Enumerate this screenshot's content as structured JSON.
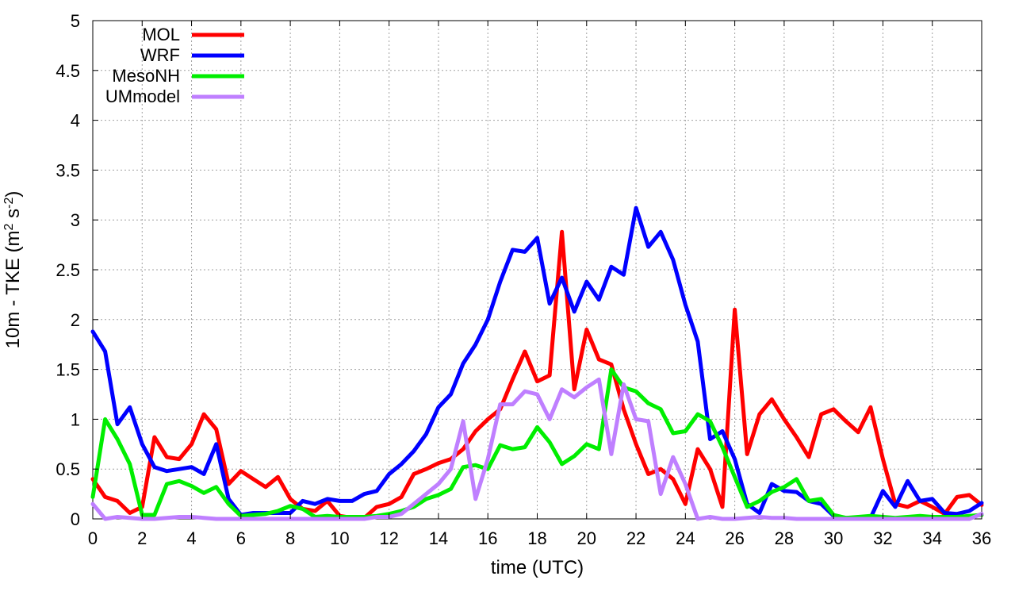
{
  "chart_data": {
    "type": "line",
    "title": "",
    "xlabel": "time (UTC)",
    "ylabel_main": "10m - TKE (m",
    "ylabel_sup1": "2",
    "ylabel_mid": " s",
    "ylabel_sup2": "-2",
    "ylabel_end": ")",
    "xlim": [
      0,
      36
    ],
    "ylim": [
      0,
      5
    ],
    "xticks": [
      "0",
      "2",
      "4",
      "6",
      "8",
      "10",
      "12",
      "14",
      "16",
      "18",
      "20",
      "22",
      "24",
      "26",
      "28",
      "30",
      "32",
      "34",
      "36"
    ],
    "yticks": [
      "0",
      "0.5",
      "1",
      "1.5",
      "2",
      "2.5",
      "3",
      "3.5",
      "4",
      "4.5",
      "5"
    ],
    "grid": true,
    "legend_position": "top-left",
    "series": [
      {
        "name": "MOL",
        "color": "#ff0000",
        "x": [
          0,
          0.5,
          1,
          1.5,
          2,
          2.5,
          3,
          3.5,
          4,
          4.5,
          5,
          5.5,
          6,
          6.5,
          7,
          7.5,
          8,
          8.5,
          9,
          9.5,
          10,
          10.5,
          11,
          11.5,
          12,
          12.5,
          13,
          13.5,
          14,
          14.5,
          15,
          15.5,
          16,
          16.5,
          17,
          17.5,
          18,
          18.5,
          19,
          19.5,
          20,
          20.5,
          21,
          21.5,
          22,
          22.5,
          23,
          23.5,
          24,
          24.5,
          25,
          25.5,
          26,
          26.5,
          27,
          27.5,
          28,
          28.5,
          29,
          29.5,
          30,
          30.5,
          31,
          31.5,
          32,
          32.5,
          33,
          33.5,
          34,
          34.5,
          35,
          35.5,
          36
        ],
        "y": [
          0.4,
          0.22,
          0.18,
          0.06,
          0.12,
          0.82,
          0.62,
          0.6,
          0.75,
          1.05,
          0.9,
          0.35,
          0.48,
          0.4,
          0.32,
          0.42,
          0.2,
          0.1,
          0.08,
          0.18,
          0.03,
          0.01,
          0.01,
          0.12,
          0.15,
          0.22,
          0.45,
          0.5,
          0.56,
          0.6,
          0.7,
          0.88,
          1.0,
          1.1,
          1.4,
          1.68,
          1.38,
          1.44,
          2.88,
          1.3,
          1.9,
          1.6,
          1.55,
          1.1,
          0.75,
          0.45,
          0.5,
          0.4,
          0.15,
          0.7,
          0.5,
          0.12,
          2.1,
          0.65,
          1.05,
          1.2,
          1.0,
          0.82,
          0.62,
          1.05,
          1.1,
          0.98,
          0.87,
          1.12,
          0.6,
          0.15,
          0.12,
          0.18,
          0.12,
          0.05,
          0.22,
          0.24,
          0.14
        ]
      },
      {
        "name": "WRF",
        "color": "#0000ff",
        "x": [
          0,
          0.5,
          1,
          1.5,
          2,
          2.5,
          3,
          3.5,
          4,
          4.5,
          5,
          5.5,
          6,
          6.5,
          7,
          7.5,
          8,
          8.5,
          9,
          9.5,
          10,
          10.5,
          11,
          11.5,
          12,
          12.5,
          13,
          13.5,
          14,
          14.5,
          15,
          15.5,
          16,
          16.5,
          17,
          17.5,
          18,
          18.5,
          19,
          19.5,
          20,
          20.5,
          21,
          21.5,
          22,
          22.5,
          23,
          23.5,
          24,
          24.5,
          25,
          25.5,
          26,
          26.5,
          27,
          27.5,
          28,
          28.5,
          29,
          29.5,
          30,
          30.5,
          31,
          31.5,
          32,
          32.5,
          33,
          33.5,
          34,
          34.5,
          35,
          35.5,
          36
        ],
        "y": [
          1.88,
          1.68,
          0.95,
          1.12,
          0.75,
          0.52,
          0.48,
          0.5,
          0.52,
          0.45,
          0.75,
          0.2,
          0.04,
          0.06,
          0.06,
          0.06,
          0.06,
          0.18,
          0.15,
          0.2,
          0.18,
          0.18,
          0.25,
          0.28,
          0.45,
          0.55,
          0.68,
          0.85,
          1.12,
          1.25,
          1.56,
          1.75,
          2.0,
          2.38,
          2.7,
          2.68,
          2.82,
          2.16,
          2.42,
          2.08,
          2.38,
          2.2,
          2.53,
          2.45,
          3.12,
          2.73,
          2.88,
          2.6,
          2.15,
          1.78,
          0.8,
          0.88,
          0.6,
          0.15,
          0.06,
          0.35,
          0.28,
          0.27,
          0.18,
          0.15,
          0.03,
          0.01,
          0.01,
          0.01,
          0.28,
          0.12,
          0.38,
          0.18,
          0.2,
          0.06,
          0.05,
          0.08,
          0.16
        ]
      },
      {
        "name": "MesoNH",
        "color": "#00ee00",
        "x": [
          0,
          0.5,
          1,
          1.5,
          2,
          2.5,
          3,
          3.5,
          4,
          4.5,
          5,
          5.5,
          6,
          6.5,
          7,
          7.5,
          8,
          8.5,
          9,
          9.5,
          10,
          10.5,
          11,
          11.5,
          12,
          12.5,
          13,
          13.5,
          14,
          14.5,
          15,
          15.5,
          16,
          16.5,
          17,
          17.5,
          18,
          18.5,
          19,
          19.5,
          20,
          20.5,
          21,
          21.5,
          22,
          22.5,
          23,
          23.5,
          24,
          24.5,
          25,
          25.5,
          26,
          26.5,
          27,
          27.5,
          28,
          28.5,
          29,
          29.5,
          30,
          30.5,
          31,
          31.5,
          32,
          32.5,
          33,
          33.5,
          34,
          34.5,
          35,
          35.5,
          36
        ],
        "y": [
          0.22,
          1.0,
          0.8,
          0.55,
          0.04,
          0.04,
          0.35,
          0.38,
          0.33,
          0.26,
          0.32,
          0.15,
          0.03,
          0.04,
          0.05,
          0.08,
          0.13,
          0.1,
          0.02,
          0.03,
          0.02,
          0.02,
          0.02,
          0.03,
          0.05,
          0.08,
          0.12,
          0.2,
          0.24,
          0.3,
          0.52,
          0.54,
          0.5,
          0.74,
          0.7,
          0.72,
          0.92,
          0.77,
          0.55,
          0.63,
          0.75,
          0.7,
          1.5,
          1.32,
          1.28,
          1.16,
          1.1,
          0.86,
          0.88,
          1.05,
          0.98,
          0.72,
          0.42,
          0.12,
          0.18,
          0.27,
          0.32,
          0.4,
          0.18,
          0.2,
          0.04,
          0.01,
          0.02,
          0.03,
          0.02,
          0.01,
          0.02,
          0.03,
          0.02,
          0.02,
          0.02,
          0.03,
          0.04
        ]
      },
      {
        "name": "UMmodel",
        "color": "#bf7fff",
        "x": [
          0,
          0.5,
          1,
          1.5,
          2,
          2.5,
          3,
          3.5,
          4,
          4.5,
          5,
          5.5,
          6,
          6.5,
          7,
          7.5,
          8,
          8.5,
          9,
          9.5,
          10,
          10.5,
          11,
          11.5,
          12,
          12.5,
          13,
          13.5,
          14,
          14.5,
          15,
          15.5,
          16,
          16.5,
          17,
          17.5,
          18,
          18.5,
          19,
          19.5,
          20,
          20.5,
          21,
          21.5,
          22,
          22.5,
          23,
          23.5,
          24,
          24.5,
          25,
          25.5,
          26,
          26.5,
          27,
          27.5,
          28,
          28.5,
          29,
          29.5,
          30,
          30.5,
          31,
          31.5,
          32,
          32.5,
          33,
          33.5,
          34,
          34.5,
          35,
          35.5,
          36
        ],
        "y": [
          0.15,
          0.0,
          0.02,
          0.01,
          0.0,
          0.0,
          0.01,
          0.02,
          0.02,
          0.01,
          0.0,
          0.0,
          0.0,
          0.0,
          0.0,
          0.0,
          0.0,
          0.0,
          0.0,
          0.0,
          0.0,
          0.0,
          0.0,
          0.02,
          0.02,
          0.05,
          0.15,
          0.25,
          0.35,
          0.5,
          0.98,
          0.2,
          0.6,
          1.15,
          1.15,
          1.28,
          1.25,
          1.0,
          1.3,
          1.22,
          1.32,
          1.4,
          0.65,
          1.35,
          1.0,
          0.98,
          0.25,
          0.62,
          0.35,
          0.0,
          0.02,
          0.0,
          0.0,
          0.01,
          0.02,
          0.01,
          0.01,
          0.0,
          0.0,
          0.0,
          0.0,
          0.0,
          0.0,
          0.0,
          0.0,
          0.0,
          0.0,
          0.0,
          0.0,
          0.0,
          0.0,
          0.0,
          0.05
        ]
      }
    ]
  }
}
